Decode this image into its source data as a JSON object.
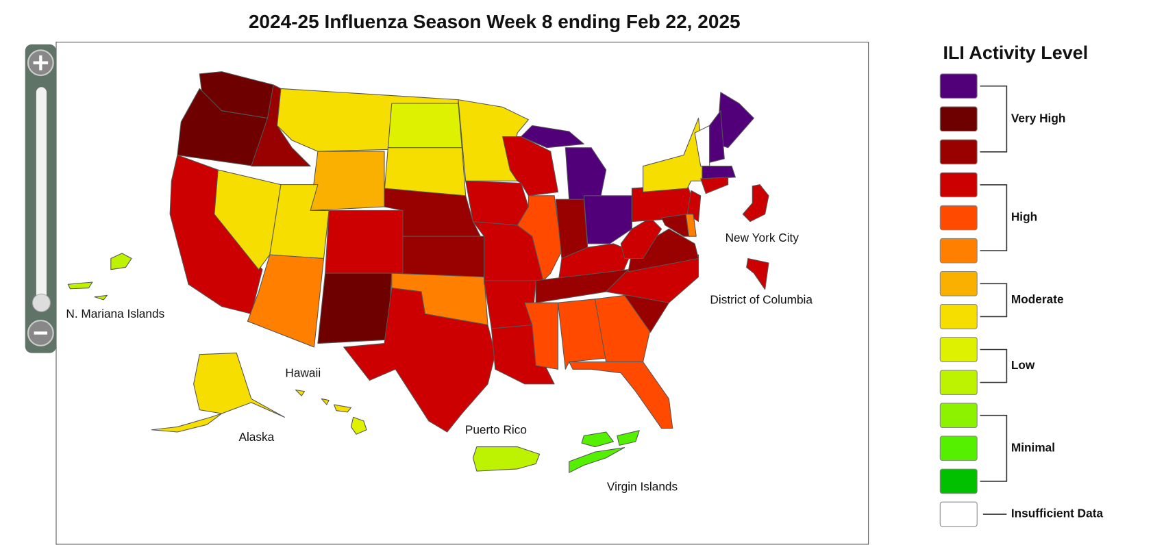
{
  "title": "2024-25 Influenza Season Week 8 ending Feb 22, 2025",
  "map": {
    "labels": [
      "N. Mariana Islands",
      "Hawaii",
      "Alaska",
      "Puerto Rico",
      "Virgin Islands",
      "New York City",
      "District of Columbia"
    ]
  },
  "legend": {
    "title": "ILI Activity Level",
    "groups": [
      {
        "label": "Very High",
        "colors": [
          "#52007a",
          "#6e0000",
          "#990000"
        ]
      },
      {
        "label": "High",
        "colors": [
          "#cc0000",
          "#ff4a00",
          "#ff7f00"
        ]
      },
      {
        "label": "Moderate",
        "colors": [
          "#f9b000",
          "#f5de00"
        ]
      },
      {
        "label": "Low",
        "colors": [
          "#def200",
          "#bdf200"
        ]
      },
      {
        "label": "Minimal",
        "colors": [
          "#8cf200",
          "#55f000",
          "#00c000"
        ]
      },
      {
        "label": "Insufficient Data",
        "colors": [
          "#ffffff"
        ]
      }
    ]
  }
}
